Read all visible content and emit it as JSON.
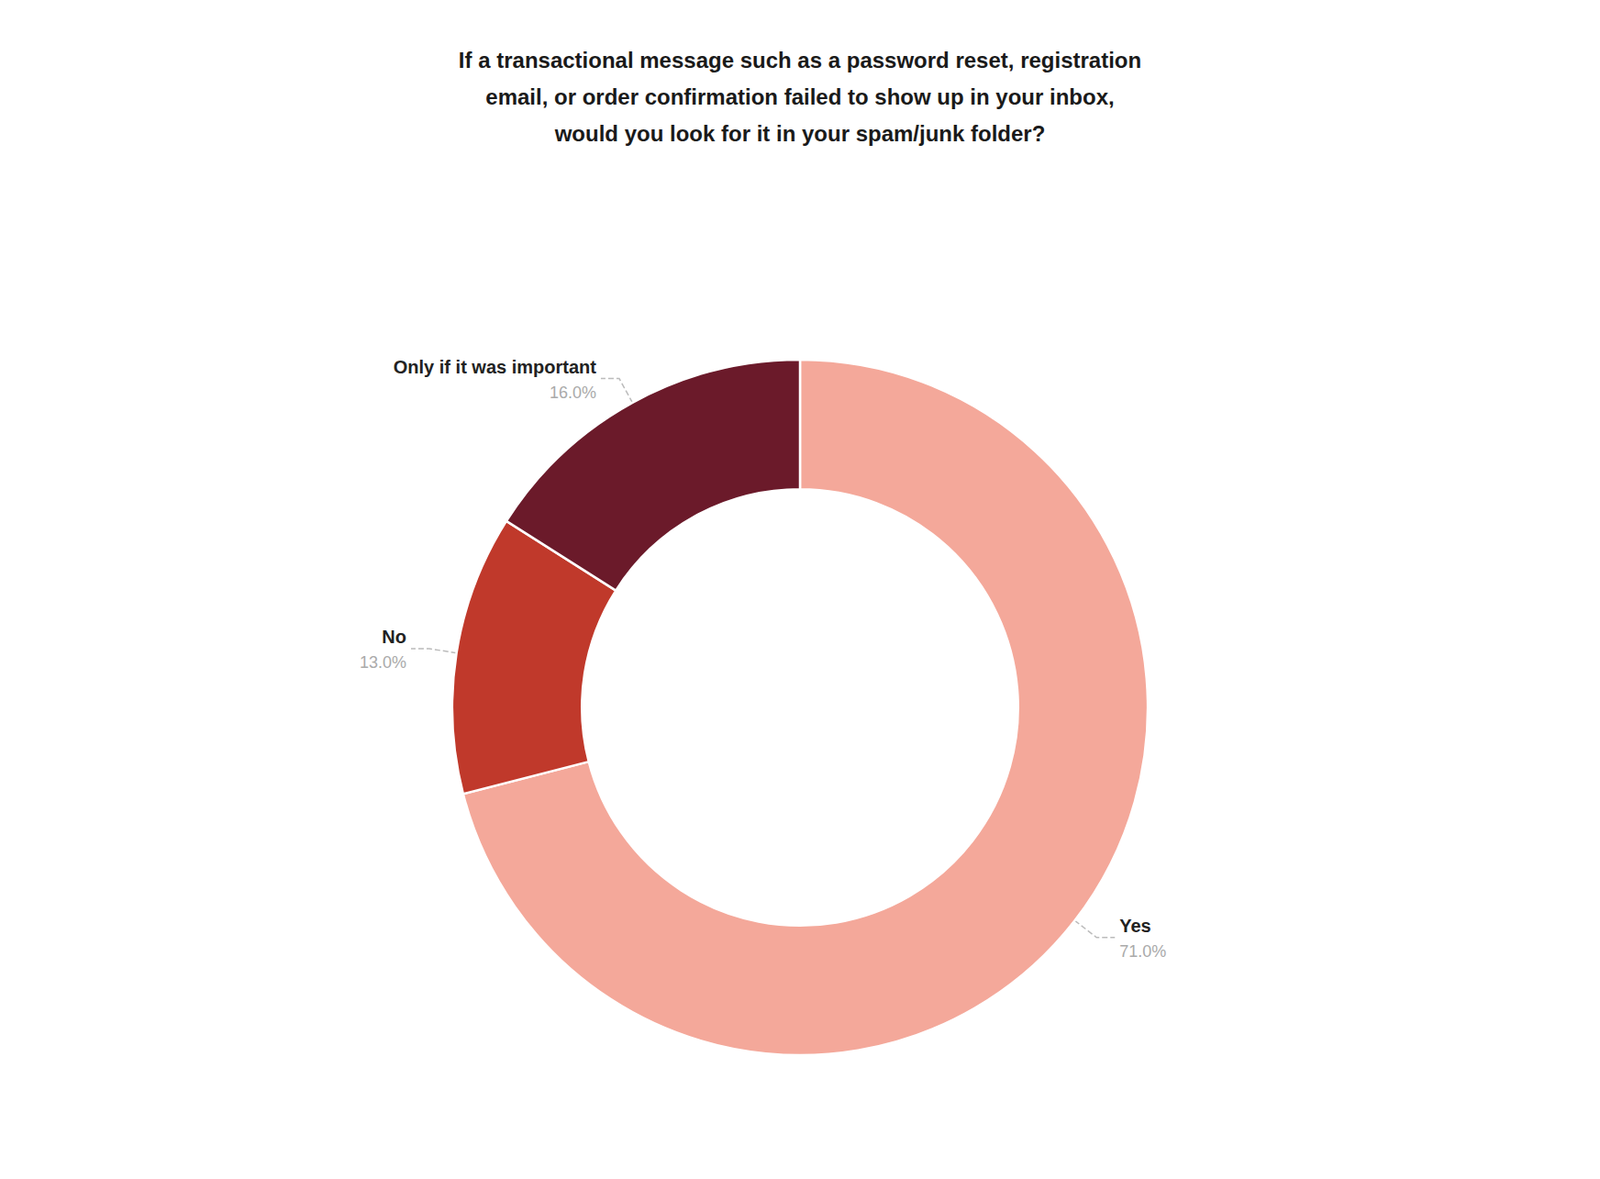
{
  "chart_data": {
    "type": "donut",
    "title": "If a transactional message such as a password reset, registration\nemail, or order confirmation failed to show up in your inbox,\nwould you look for it in your spam/junk folder?",
    "categories": [
      "Yes",
      "No",
      "Only if it was important"
    ],
    "values": [
      71.0,
      13.0,
      16.0
    ],
    "value_labels": [
      "71.0%",
      "13.0%",
      "16.0%"
    ],
    "colors": [
      "#F4A89A",
      "#C0392B",
      "#6B1A2A"
    ],
    "data_labels": true
  }
}
